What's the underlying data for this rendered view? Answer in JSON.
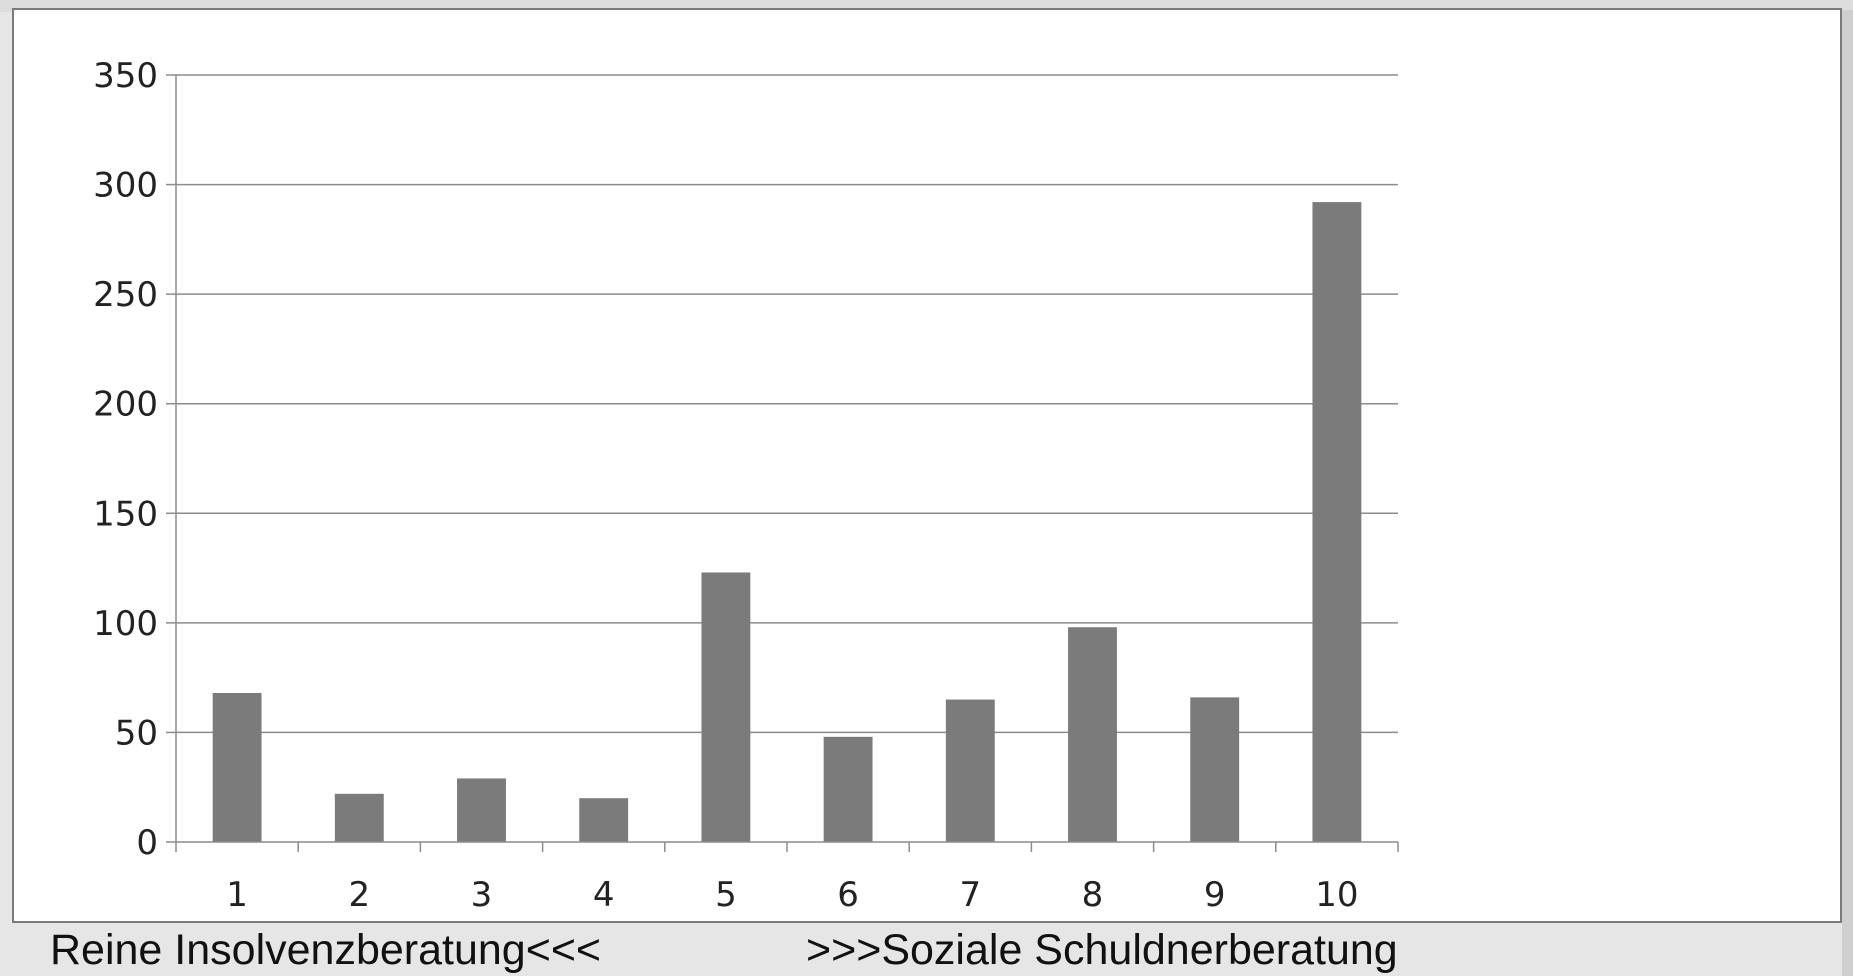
{
  "chart_data": {
    "type": "bar",
    "categories": [
      "1",
      "2",
      "3",
      "4",
      "5",
      "6",
      "7",
      "8",
      "9",
      "10"
    ],
    "values": [
      68,
      22,
      29,
      20,
      123,
      48,
      65,
      98,
      66,
      292
    ],
    "ylim": [
      0,
      350
    ],
    "yticks": [
      0,
      50,
      100,
      150,
      200,
      250,
      300,
      350
    ],
    "grid": true,
    "legend": "none",
    "bar_color": "#7b7b7b"
  },
  "captions": {
    "left": "Reine Insolvenzberatung<<<",
    "right": ">>>Soziale Schuldnerberatung"
  }
}
